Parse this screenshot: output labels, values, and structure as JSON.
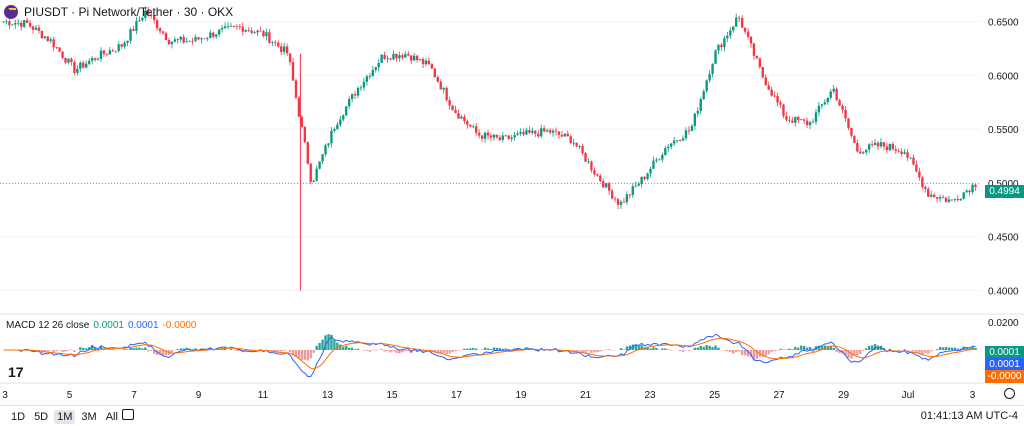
{
  "header": {
    "title": "PIUSDT · Pi Network/Tether · 30 · OKX"
  },
  "macd": {
    "label": "MACD 12 26 close",
    "v1": "0.0001",
    "v2": "0.0001",
    "v3": "-0.0000"
  },
  "price_axis": [
    "0.6500",
    "0.6000",
    "0.5500",
    "0.5000",
    "0.4500",
    "0.4000"
  ],
  "last_price": "0.4994",
  "macd_axis_top": "0.0200",
  "macd_badges": [
    "0.0001",
    "0.0001",
    "-0.0000"
  ],
  "time_axis": [
    "3",
    "5",
    "7",
    "9",
    "11",
    "13",
    "15",
    "17",
    "19",
    "21",
    "23",
    "25",
    "27",
    "29",
    "Jul",
    "3"
  ],
  "ranges": [
    "1D",
    "5D",
    "1M",
    "3M",
    "All"
  ],
  "active_range": "1M",
  "clock": "01:41:13 AM UTC-4",
  "colors": {
    "up": "#089981",
    "down": "#f23645",
    "macd_line": "#2962ff",
    "signal_line": "#ff6d00",
    "last_badge": "#089981"
  },
  "chart_data": {
    "type": "candlestick",
    "ylim": [
      0.38,
      0.67
    ],
    "last_price": 0.4994,
    "close_series": [
      {
        "x": "3",
        "y": 0.65
      },
      {
        "x": "4",
        "y": 0.648
      },
      {
        "x": "5",
        "y": 0.632
      },
      {
        "x": "5.3",
        "y": 0.605
      },
      {
        "x": "6",
        "y": 0.618
      },
      {
        "x": "7",
        "y": 0.628
      },
      {
        "x": "7.8",
        "y": 0.66
      },
      {
        "x": "8",
        "y": 0.632
      },
      {
        "x": "9",
        "y": 0.632
      },
      {
        "x": "10",
        "y": 0.64
      },
      {
        "x": "11",
        "y": 0.645
      },
      {
        "x": "12",
        "y": 0.638
      },
      {
        "x": "12.8",
        "y": 0.62
      },
      {
        "x": "13",
        "y": 0.5
      },
      {
        "x": "13.3",
        "y": 0.555
      },
      {
        "x": "14",
        "y": 0.59
      },
      {
        "x": "14.5",
        "y": 0.618
      },
      {
        "x": "15",
        "y": 0.62
      },
      {
        "x": "16",
        "y": 0.608
      },
      {
        "x": "16.7",
        "y": 0.568
      },
      {
        "x": "17",
        "y": 0.545
      },
      {
        "x": "18",
        "y": 0.54
      },
      {
        "x": "19",
        "y": 0.545
      },
      {
        "x": "20",
        "y": 0.548
      },
      {
        "x": "21",
        "y": 0.54
      },
      {
        "x": "22",
        "y": 0.508
      },
      {
        "x": "22.6",
        "y": 0.48
      },
      {
        "x": "23",
        "y": 0.505
      },
      {
        "x": "24",
        "y": 0.535
      },
      {
        "x": "24.6",
        "y": 0.55
      },
      {
        "x": "25",
        "y": 0.62
      },
      {
        "x": "25.4",
        "y": 0.655
      },
      {
        "x": "26",
        "y": 0.6
      },
      {
        "x": "26.5",
        "y": 0.56
      },
      {
        "x": "27",
        "y": 0.555
      },
      {
        "x": "27.8",
        "y": 0.588
      },
      {
        "x": "28",
        "y": 0.53
      },
      {
        "x": "29",
        "y": 0.535
      },
      {
        "x": "30",
        "y": 0.53
      },
      {
        "x": "Jul 1",
        "y": 0.49
      },
      {
        "x": "2",
        "y": 0.483
      },
      {
        "x": "3",
        "y": 0.4994
      }
    ],
    "macd_range": [
      -0.025,
      0.025
    ],
    "macd_axis_label": "0.0200"
  }
}
